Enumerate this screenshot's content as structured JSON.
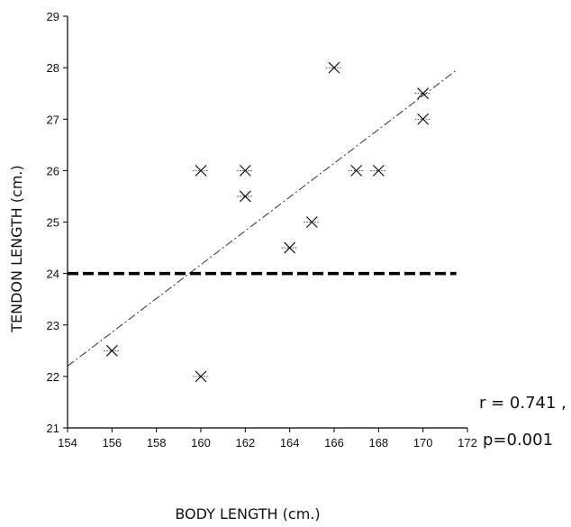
{
  "chart_data": {
    "type": "scatter",
    "title": "",
    "xlabel": "BODY LENGTH (cm.)",
    "ylabel": "TENDON LENGTH (cm.)",
    "xlim": [
      154,
      172
    ],
    "ylim": [
      21,
      29
    ],
    "xticks": [
      154,
      156,
      158,
      160,
      162,
      164,
      166,
      168,
      170,
      172
    ],
    "yticks": [
      21,
      22,
      23,
      24,
      25,
      26,
      27,
      28,
      29
    ],
    "grid": false,
    "marker": "asterisk",
    "points": [
      {
        "x": 156,
        "y": 22.5
      },
      {
        "x": 160,
        "y": 22
      },
      {
        "x": 160,
        "y": 26
      },
      {
        "x": 162,
        "y": 26
      },
      {
        "x": 162,
        "y": 25.5
      },
      {
        "x": 164,
        "y": 24.5
      },
      {
        "x": 165,
        "y": 25
      },
      {
        "x": 166,
        "y": 28
      },
      {
        "x": 167,
        "y": 26
      },
      {
        "x": 168,
        "y": 26
      },
      {
        "x": 170,
        "y": 27.5
      },
      {
        "x": 170,
        "y": 27
      }
    ],
    "regression_line": {
      "x": [
        154,
        171.5
      ],
      "y": [
        22.2,
        27.95
      ],
      "style": "dash-dot"
    },
    "reference_line": {
      "y": 24,
      "x": [
        154,
        171.5
      ],
      "style": "bold-dashed"
    },
    "annotations": [
      "r = 0.741 ,",
      "p=0.001"
    ],
    "colors": {
      "marks": "#111111",
      "axis": "#000000"
    }
  }
}
